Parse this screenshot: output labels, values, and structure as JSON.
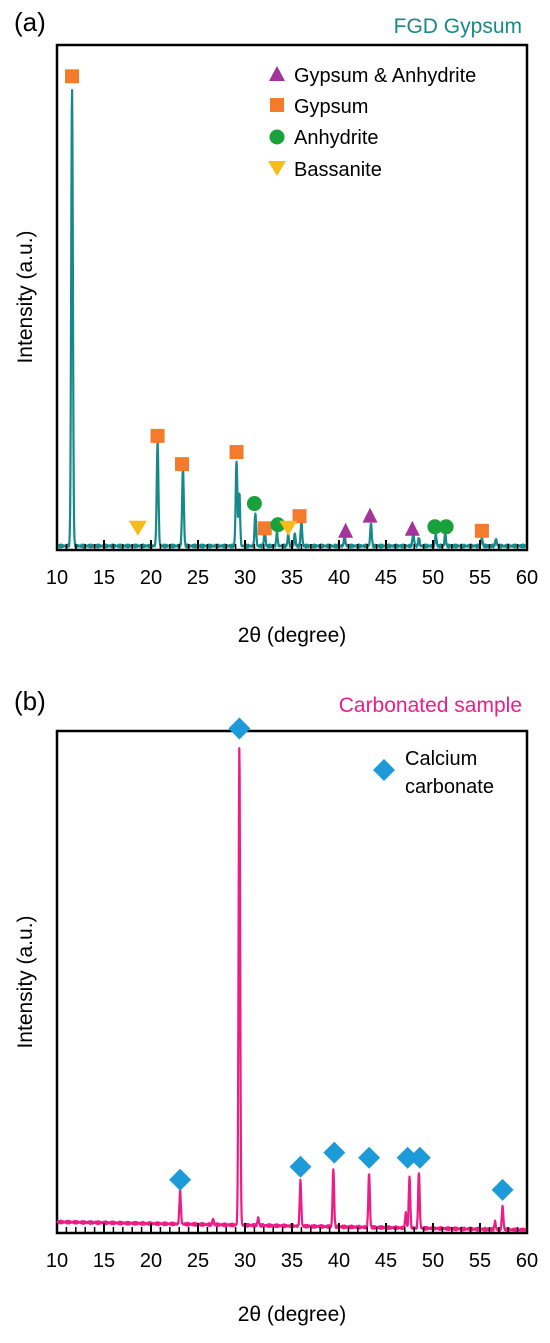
{
  "colors": {
    "axis": "#000000",
    "teal": "#168a8a",
    "pink": "#ee1c87",
    "gypsum_anhydrite": "#a3339a",
    "gypsum": "#f47a2c",
    "anhydrite": "#19a23b",
    "bassanite": "#f6bd16",
    "calcium_carbonate": "#1d9bd8"
  },
  "chart_data": [
    {
      "type": "line",
      "panel_label": "(a)",
      "title": "FGD Gypsum",
      "xlabel": "2θ (degree)",
      "ylabel": "Intensity (a.u.)",
      "xlim": [
        10,
        60
      ],
      "ylim": [
        0,
        100
      ],
      "xticks": [
        10,
        15,
        20,
        25,
        30,
        35,
        40,
        45,
        50,
        55,
        60
      ],
      "xtick_labels": [
        "10",
        "15",
        "20",
        "25",
        "30",
        "35",
        "40",
        "45",
        "50",
        "55",
        "60"
      ],
      "grid": false,
      "legend_position": "top-right",
      "baseline": 0.8,
      "peaks": [
        {
          "x": 11.6,
          "y": 90.5,
          "w": 0.09
        },
        {
          "x": 20.7,
          "y": 20.5,
          "w": 0.09
        },
        {
          "x": 23.4,
          "y": 15.4,
          "w": 0.09
        },
        {
          "x": 29.1,
          "y": 16.8,
          "w": 0.09
        },
        {
          "x": 29.4,
          "y": 10.5,
          "w": 0.08
        },
        {
          "x": 31.1,
          "y": 6.5,
          "w": 0.08
        },
        {
          "x": 32.1,
          "y": 3.8,
          "w": 0.07
        },
        {
          "x": 33.4,
          "y": 2.8,
          "w": 0.07
        },
        {
          "x": 34.6,
          "y": 2.4,
          "w": 0.07
        },
        {
          "x": 35.3,
          "y": 2.6,
          "w": 0.07
        },
        {
          "x": 36.0,
          "y": 4.8,
          "w": 0.08
        },
        {
          "x": 40.6,
          "y": 2.0,
          "w": 0.08
        },
        {
          "x": 43.4,
          "y": 4.5,
          "w": 0.08
        },
        {
          "x": 47.9,
          "y": 2.6,
          "w": 0.08
        },
        {
          "x": 48.5,
          "y": 1.6,
          "w": 0.07
        },
        {
          "x": 50.3,
          "y": 2.4,
          "w": 0.07
        },
        {
          "x": 51.3,
          "y": 2.6,
          "w": 0.07
        },
        {
          "x": 55.2,
          "y": 1.6,
          "w": 0.08
        },
        {
          "x": 56.7,
          "y": 1.4,
          "w": 0.08
        }
      ],
      "series": [
        {
          "name": "Gypsum & Anhydrite",
          "marker": "triangle-up",
          "color": "#a3339a",
          "points": [
            [
              40.7,
              3.8
            ],
            [
              43.3,
              6.8
            ],
            [
              47.8,
              4.2
            ]
          ]
        },
        {
          "name": "Gypsum",
          "marker": "square",
          "color": "#f47a2c",
          "points": [
            [
              11.6,
              93.8
            ],
            [
              20.7,
              22.6
            ],
            [
              23.3,
              17.0
            ],
            [
              29.1,
              19.4
            ],
            [
              32.1,
              4.3
            ],
            [
              35.8,
              6.7
            ],
            [
              55.2,
              3.8
            ]
          ]
        },
        {
          "name": "Anhydrite",
          "marker": "circle",
          "color": "#19a23b",
          "points": [
            [
              31.0,
              9.2
            ],
            [
              33.5,
              5.0
            ],
            [
              50.2,
              4.6
            ],
            [
              51.4,
              4.6
            ]
          ]
        },
        {
          "name": "Bassanite",
          "marker": "triangle-down",
          "color": "#f6bd16",
          "points": [
            [
              18.6,
              4.4
            ],
            [
              34.6,
              4.4
            ]
          ]
        }
      ]
    },
    {
      "type": "line",
      "panel_label": "(b)",
      "title": "Carbonated sample",
      "xlabel": "2θ (degree)",
      "ylabel": "Intensity (a.u.)",
      "xlim": [
        10,
        60
      ],
      "ylim": [
        0,
        100
      ],
      "xticks": [
        10,
        15,
        20,
        25,
        30,
        35,
        40,
        45,
        50,
        55,
        60
      ],
      "xtick_labels": [
        "10",
        "15",
        "20",
        "25",
        "30",
        "35",
        "40",
        "45",
        "50",
        "55",
        "60"
      ],
      "grid": false,
      "legend_position": "top-right",
      "background": {
        "start": 2.2,
        "end": 0.6
      },
      "peaks": [
        {
          "x": 23.1,
          "y": 6.5,
          "w": 0.08
        },
        {
          "x": 26.6,
          "y": 1.2,
          "w": 0.07
        },
        {
          "x": 29.4,
          "y": 95.5,
          "w": 0.085
        },
        {
          "x": 31.4,
          "y": 1.6,
          "w": 0.07
        },
        {
          "x": 35.9,
          "y": 9.0,
          "w": 0.08
        },
        {
          "x": 39.4,
          "y": 11.5,
          "w": 0.08
        },
        {
          "x": 43.2,
          "y": 10.8,
          "w": 0.08
        },
        {
          "x": 47.1,
          "y": 3.0,
          "w": 0.07
        },
        {
          "x": 47.5,
          "y": 10.2,
          "w": 0.08
        },
        {
          "x": 48.5,
          "y": 11.2,
          "w": 0.08
        },
        {
          "x": 56.6,
          "y": 1.6,
          "w": 0.07
        },
        {
          "x": 57.4,
          "y": 4.6,
          "w": 0.08
        }
      ],
      "series": [
        {
          "name": "Calcium carbonate",
          "legend_lines": [
            "Calcium",
            "carbonate"
          ],
          "marker": "diamond",
          "color": "#1d9bd8",
          "points": [
            [
              23.1,
              10.6
            ],
            [
              29.4,
              100.5
            ],
            [
              35.9,
              13.2
            ],
            [
              39.5,
              16.0
            ],
            [
              43.2,
              15.0
            ],
            [
              47.3,
              15.0
            ],
            [
              48.6,
              15.0
            ],
            [
              57.4,
              8.6
            ]
          ]
        }
      ]
    }
  ]
}
